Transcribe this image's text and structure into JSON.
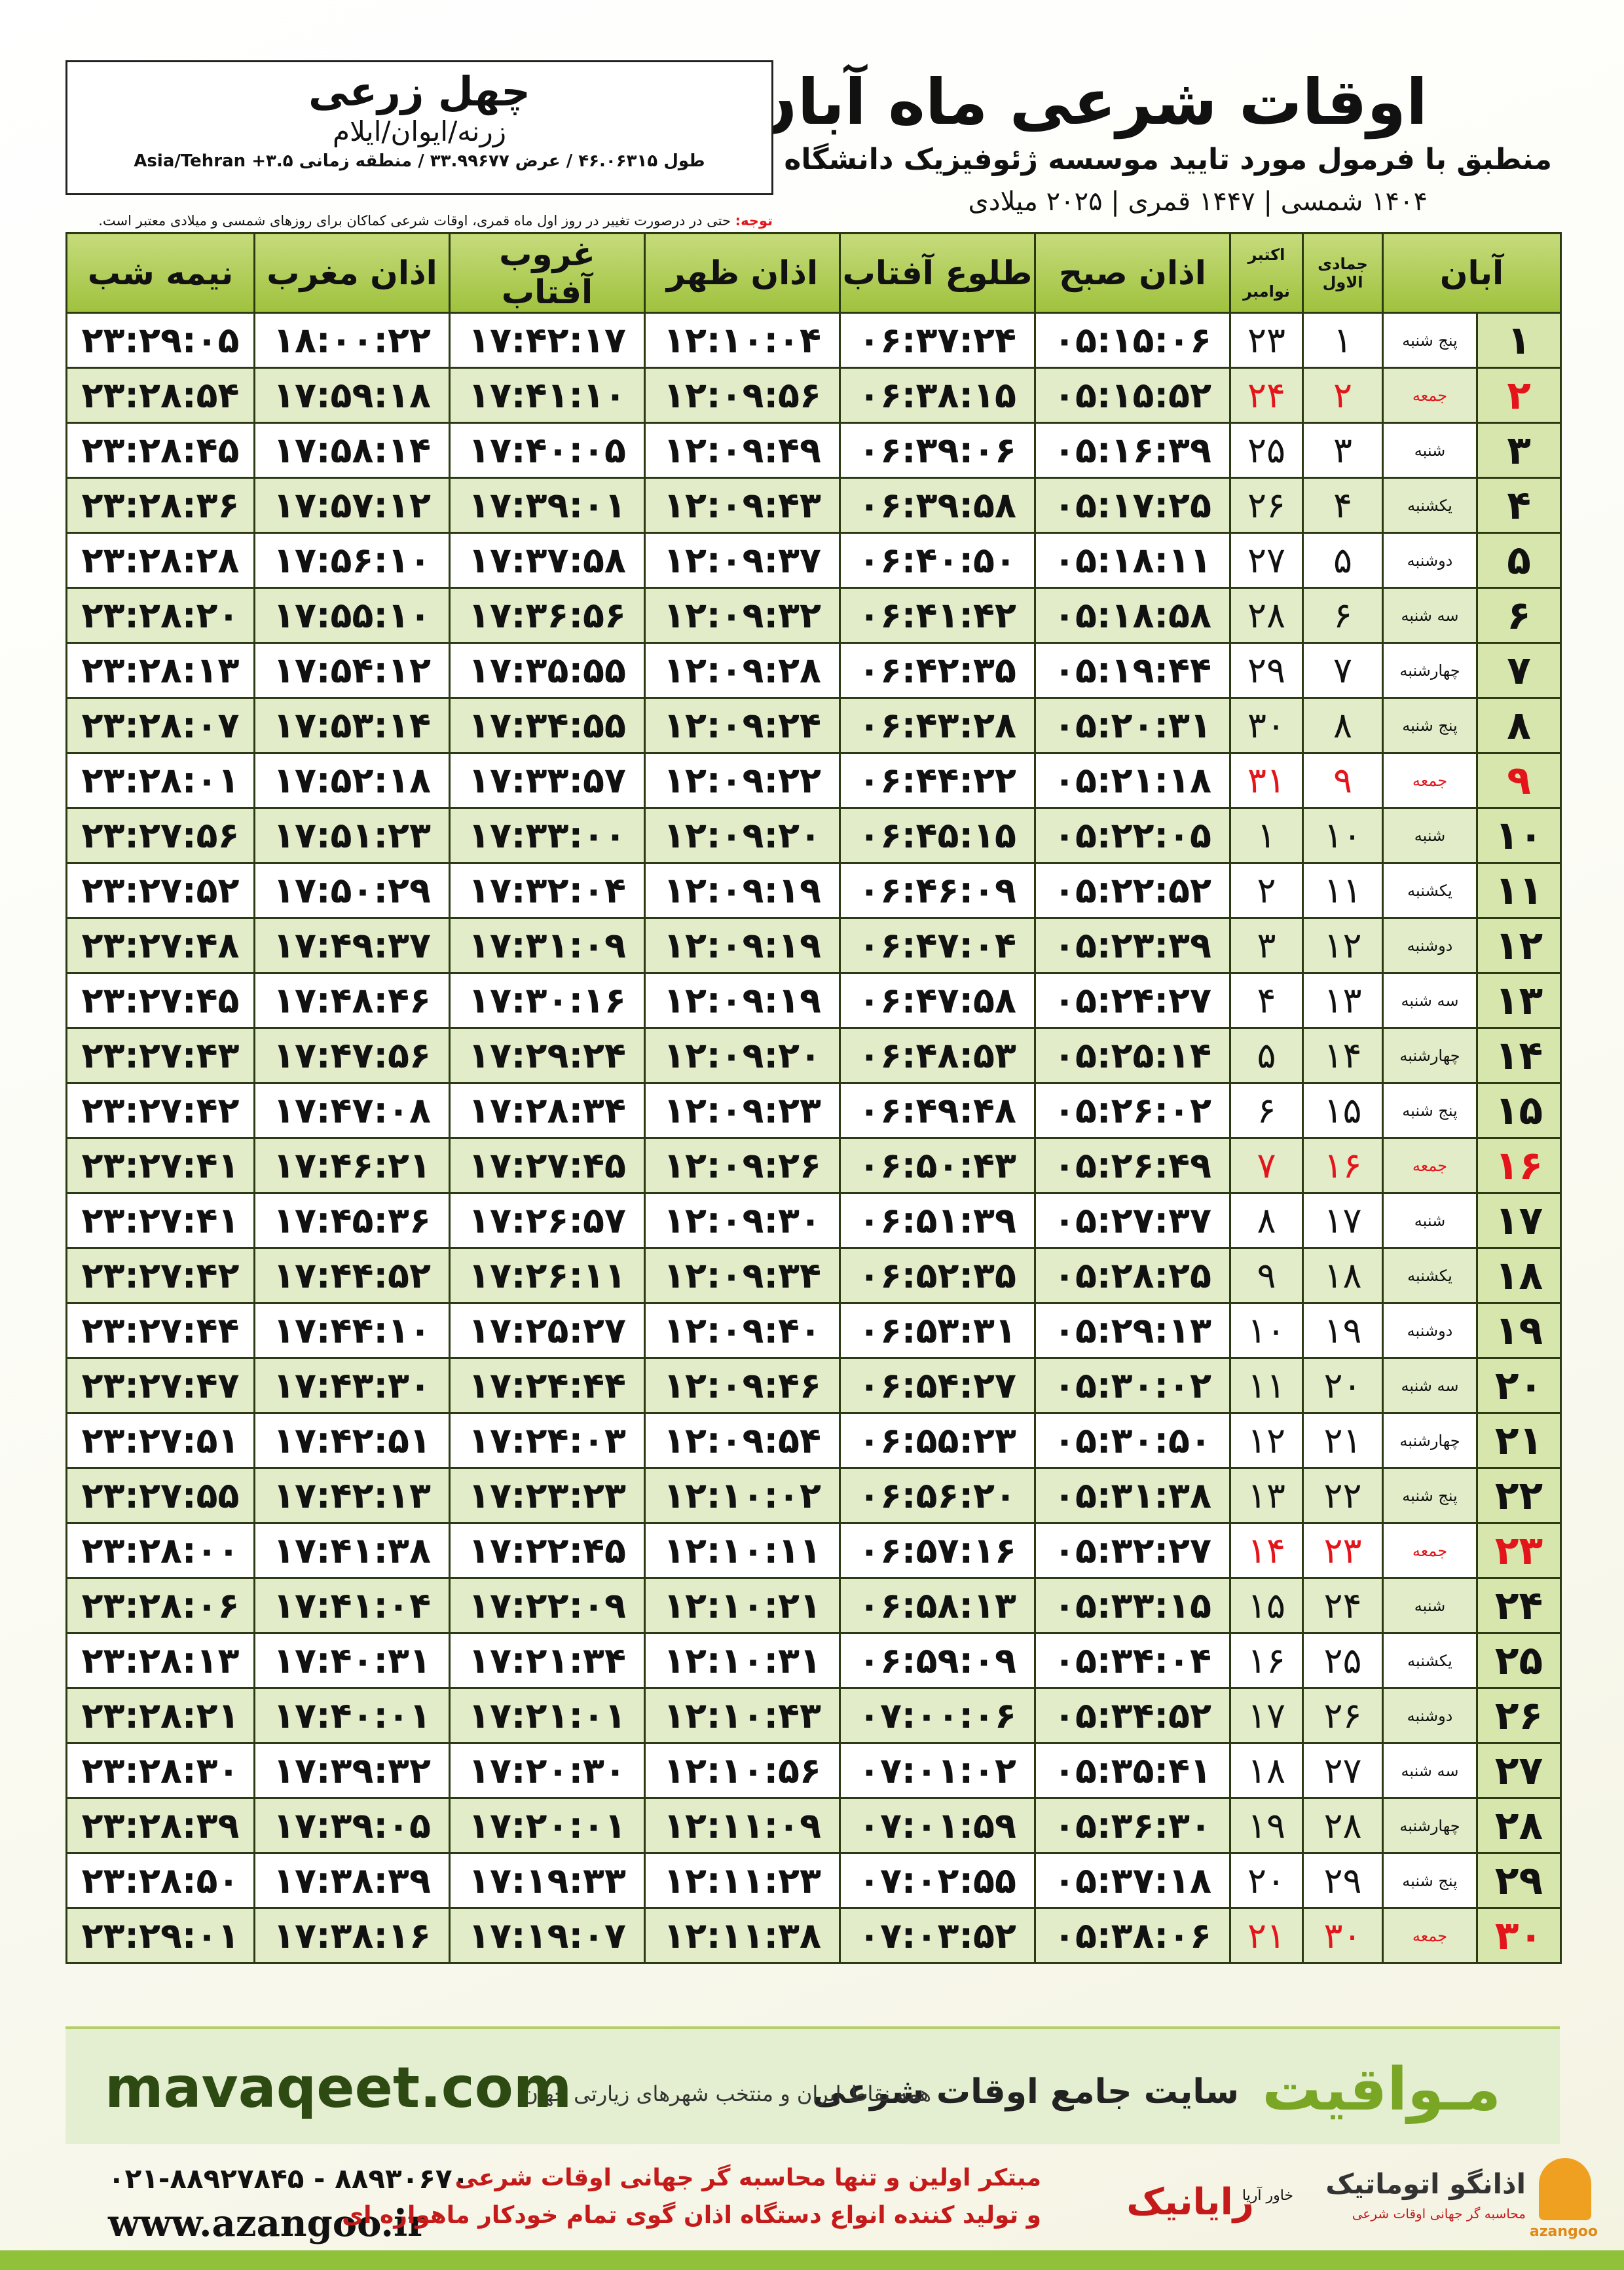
{
  "header": {
    "title": "اوقات شرعی ماه آبان",
    "subtitle": "منطبق با فرمول مورد تایید موسسه ژئوفیزیک دانشگاه تهران",
    "dates": "۱۴۰۴ شمسی | ۱۴۴۷ قمری | ۲۰۲۵ میلادی"
  },
  "location": {
    "name": "چهل زرعی",
    "region": "زرنه/ایوان/ایلام",
    "coords": "طول ۴۶.۰۶۳۱۵ / عرض ۳۳.۹۹۶۷۷ / منطقه زمانی ۳.۵+ Asia/Tehran"
  },
  "note": {
    "label": "توجه:",
    "text": "حتی در درصورت تغییر در روز اول ماه قمری، اوقات شرعی کماکان برای روزهای شمسی و میلادی معتبر است."
  },
  "table": {
    "holiday_color": "#e3151a",
    "headers": {
      "aban": "آبان",
      "qamari": "جمادی الاول",
      "greg_top": "اکتبر",
      "greg_bottom": "نوامبر",
      "fajr": "اذان صبح",
      "sunrise": "طلوع آفتاب",
      "dhuhr": "اذان ظهر",
      "sunset": "غروب آفتاب",
      "maghrib": "اذان مغرب",
      "midnight": "نیمه شب"
    },
    "rows": [
      {
        "cells": [
          "۱",
          "پنج شنبه",
          "۱",
          "۲۳",
          "۰۵:۱۵:۰۶",
          "۰۶:۳۷:۲۴",
          "۱۲:۱۰:۰۴",
          "۱۷:۴۲:۱۷",
          "۱۸:۰۰:۲۲",
          "۲۳:۲۹:۰۵"
        ]
      },
      {
        "cells": [
          "۲",
          "جمعه",
          "۲",
          "۲۴",
          "۰۵:۱۵:۵۲",
          "۰۶:۳۸:۱۵",
          "۱۲:۰۹:۵۶",
          "۱۷:۴۱:۱۰",
          "۱۷:۵۹:۱۸",
          "۲۳:۲۸:۵۴"
        ],
        "holiday": true
      },
      {
        "cells": [
          "۳",
          "شنبه",
          "۳",
          "۲۵",
          "۰۵:۱۶:۳۹",
          "۰۶:۳۹:۰۶",
          "۱۲:۰۹:۴۹",
          "۱۷:۴۰:۰۵",
          "۱۷:۵۸:۱۴",
          "۲۳:۲۸:۴۵"
        ]
      },
      {
        "cells": [
          "۴",
          "یکشنبه",
          "۴",
          "۲۶",
          "۰۵:۱۷:۲۵",
          "۰۶:۳۹:۵۸",
          "۱۲:۰۹:۴۳",
          "۱۷:۳۹:۰۱",
          "۱۷:۵۷:۱۲",
          "۲۳:۲۸:۳۶"
        ]
      },
      {
        "cells": [
          "۵",
          "دوشنبه",
          "۵",
          "۲۷",
          "۰۵:۱۸:۱۱",
          "۰۶:۴۰:۵۰",
          "۱۲:۰۹:۳۷",
          "۱۷:۳۷:۵۸",
          "۱۷:۵۶:۱۰",
          "۲۳:۲۸:۲۸"
        ]
      },
      {
        "cells": [
          "۶",
          "سه شنبه",
          "۶",
          "۲۸",
          "۰۵:۱۸:۵۸",
          "۰۶:۴۱:۴۲",
          "۱۲:۰۹:۳۲",
          "۱۷:۳۶:۵۶",
          "۱۷:۵۵:۱۰",
          "۲۳:۲۸:۲۰"
        ]
      },
      {
        "cells": [
          "۷",
          "چهارشنبه",
          "۷",
          "۲۹",
          "۰۵:۱۹:۴۴",
          "۰۶:۴۲:۳۵",
          "۱۲:۰۹:۲۸",
          "۱۷:۳۵:۵۵",
          "۱۷:۵۴:۱۲",
          "۲۳:۲۸:۱۳"
        ]
      },
      {
        "cells": [
          "۸",
          "پنج شنبه",
          "۸",
          "۳۰",
          "۰۵:۲۰:۳۱",
          "۰۶:۴۳:۲۸",
          "۱۲:۰۹:۲۴",
          "۱۷:۳۴:۵۵",
          "۱۷:۵۳:۱۴",
          "۲۳:۲۸:۰۷"
        ]
      },
      {
        "cells": [
          "۹",
          "جمعه",
          "۹",
          "۳۱",
          "۰۵:۲۱:۱۸",
          "۰۶:۴۴:۲۲",
          "۱۲:۰۹:۲۲",
          "۱۷:۳۳:۵۷",
          "۱۷:۵۲:۱۸",
          "۲۳:۲۸:۰۱"
        ],
        "holiday": true
      },
      {
        "cells": [
          "۱۰",
          "شنبه",
          "۱۰",
          "۱",
          "۰۵:۲۲:۰۵",
          "۰۶:۴۵:۱۵",
          "۱۲:۰۹:۲۰",
          "۱۷:۳۳:۰۰",
          "۱۷:۵۱:۲۳",
          "۲۳:۲۷:۵۶"
        ]
      },
      {
        "cells": [
          "۱۱",
          "یکشنبه",
          "۱۱",
          "۲",
          "۰۵:۲۲:۵۲",
          "۰۶:۴۶:۰۹",
          "۱۲:۰۹:۱۹",
          "۱۷:۳۲:۰۴",
          "۱۷:۵۰:۲۹",
          "۲۳:۲۷:۵۲"
        ]
      },
      {
        "cells": [
          "۱۲",
          "دوشنبه",
          "۱۲",
          "۳",
          "۰۵:۲۳:۳۹",
          "۰۶:۴۷:۰۴",
          "۱۲:۰۹:۱۹",
          "۱۷:۳۱:۰۹",
          "۱۷:۴۹:۳۷",
          "۲۳:۲۷:۴۸"
        ]
      },
      {
        "cells": [
          "۱۳",
          "سه شنبه",
          "۱۳",
          "۴",
          "۰۵:۲۴:۲۷",
          "۰۶:۴۷:۵۸",
          "۱۲:۰۹:۱۹",
          "۱۷:۳۰:۱۶",
          "۱۷:۴۸:۴۶",
          "۲۳:۲۷:۴۵"
        ]
      },
      {
        "cells": [
          "۱۴",
          "چهارشنبه",
          "۱۴",
          "۵",
          "۰۵:۲۵:۱۴",
          "۰۶:۴۸:۵۳",
          "۱۲:۰۹:۲۰",
          "۱۷:۲۹:۲۴",
          "۱۷:۴۷:۵۶",
          "۲۳:۲۷:۴۳"
        ]
      },
      {
        "cells": [
          "۱۵",
          "پنج شنبه",
          "۱۵",
          "۶",
          "۰۵:۲۶:۰۲",
          "۰۶:۴۹:۴۸",
          "۱۲:۰۹:۲۳",
          "۱۷:۲۸:۳۴",
          "۱۷:۴۷:۰۸",
          "۲۳:۲۷:۴۲"
        ]
      },
      {
        "cells": [
          "۱۶",
          "جمعه",
          "۱۶",
          "۷",
          "۰۵:۲۶:۴۹",
          "۰۶:۵۰:۴۳",
          "۱۲:۰۹:۲۶",
          "۱۷:۲۷:۴۵",
          "۱۷:۴۶:۲۱",
          "۲۳:۲۷:۴۱"
        ],
        "holiday": true
      },
      {
        "cells": [
          "۱۷",
          "شنبه",
          "۱۷",
          "۸",
          "۰۵:۲۷:۳۷",
          "۰۶:۵۱:۳۹",
          "۱۲:۰۹:۳۰",
          "۱۷:۲۶:۵۷",
          "۱۷:۴۵:۳۶",
          "۲۳:۲۷:۴۱"
        ]
      },
      {
        "cells": [
          "۱۸",
          "یکشنبه",
          "۱۸",
          "۹",
          "۰۵:۲۸:۲۵",
          "۰۶:۵۲:۳۵",
          "۱۲:۰۹:۳۴",
          "۱۷:۲۶:۱۱",
          "۱۷:۴۴:۵۲",
          "۲۳:۲۷:۴۲"
        ]
      },
      {
        "cells": [
          "۱۹",
          "دوشنبه",
          "۱۹",
          "۱۰",
          "۰۵:۲۹:۱۳",
          "۰۶:۵۳:۳۱",
          "۱۲:۰۹:۴۰",
          "۱۷:۲۵:۲۷",
          "۱۷:۴۴:۱۰",
          "۲۳:۲۷:۴۴"
        ]
      },
      {
        "cells": [
          "۲۰",
          "سه شنبه",
          "۲۰",
          "۱۱",
          "۰۵:۳۰:۰۲",
          "۰۶:۵۴:۲۷",
          "۱۲:۰۹:۴۶",
          "۱۷:۲۴:۴۴",
          "۱۷:۴۳:۳۰",
          "۲۳:۲۷:۴۷"
        ]
      },
      {
        "cells": [
          "۲۱",
          "چهارشنبه",
          "۲۱",
          "۱۲",
          "۰۵:۳۰:۵۰",
          "۰۶:۵۵:۲۳",
          "۱۲:۰۹:۵۴",
          "۱۷:۲۴:۰۳",
          "۱۷:۴۲:۵۱",
          "۲۳:۲۷:۵۱"
        ]
      },
      {
        "cells": [
          "۲۲",
          "پنج شنبه",
          "۲۲",
          "۱۳",
          "۰۵:۳۱:۳۸",
          "۰۶:۵۶:۲۰",
          "۱۲:۱۰:۰۲",
          "۱۷:۲۳:۲۳",
          "۱۷:۴۲:۱۳",
          "۲۳:۲۷:۵۵"
        ]
      },
      {
        "cells": [
          "۲۳",
          "جمعه",
          "۲۳",
          "۱۴",
          "۰۵:۳۲:۲۷",
          "۰۶:۵۷:۱۶",
          "۱۲:۱۰:۱۱",
          "۱۷:۲۲:۴۵",
          "۱۷:۴۱:۳۸",
          "۲۳:۲۸:۰۰"
        ],
        "holiday": true
      },
      {
        "cells": [
          "۲۴",
          "شنبه",
          "۲۴",
          "۱۵",
          "۰۵:۳۳:۱۵",
          "۰۶:۵۸:۱۳",
          "۱۲:۱۰:۲۱",
          "۱۷:۲۲:۰۹",
          "۱۷:۴۱:۰۴",
          "۲۳:۲۸:۰۶"
        ]
      },
      {
        "cells": [
          "۲۵",
          "یکشنبه",
          "۲۵",
          "۱۶",
          "۰۵:۳۴:۰۴",
          "۰۶:۵۹:۰۹",
          "۱۲:۱۰:۳۱",
          "۱۷:۲۱:۳۴",
          "۱۷:۴۰:۳۱",
          "۲۳:۲۸:۱۳"
        ]
      },
      {
        "cells": [
          "۲۶",
          "دوشنبه",
          "۲۶",
          "۱۷",
          "۰۵:۳۴:۵۲",
          "۰۷:۰۰:۰۶",
          "۱۲:۱۰:۴۳",
          "۱۷:۲۱:۰۱",
          "۱۷:۴۰:۰۱",
          "۲۳:۲۸:۲۱"
        ]
      },
      {
        "cells": [
          "۲۷",
          "سه شنبه",
          "۲۷",
          "۱۸",
          "۰۵:۳۵:۴۱",
          "۰۷:۰۱:۰۲",
          "۱۲:۱۰:۵۶",
          "۱۷:۲۰:۳۰",
          "۱۷:۳۹:۳۲",
          "۲۳:۲۸:۳۰"
        ]
      },
      {
        "cells": [
          "۲۸",
          "چهارشنبه",
          "۲۸",
          "۱۹",
          "۰۵:۳۶:۳۰",
          "۰۷:۰۱:۵۹",
          "۱۲:۱۱:۰۹",
          "۱۷:۲۰:۰۱",
          "۱۷:۳۹:۰۵",
          "۲۳:۲۸:۳۹"
        ]
      },
      {
        "cells": [
          "۲۹",
          "پنج شنبه",
          "۲۹",
          "۲۰",
          "۰۵:۳۷:۱۸",
          "۰۷:۰۲:۵۵",
          "۱۲:۱۱:۲۳",
          "۱۷:۱۹:۳۳",
          "۱۷:۳۸:۳۹",
          "۲۳:۲۸:۵۰"
        ]
      },
      {
        "cells": [
          "۳۰",
          "جمعه",
          "۳۰",
          "۲۱",
          "۰۵:۳۸:۰۶",
          "۰۷:۰۳:۵۲",
          "۱۲:۱۱:۳۸",
          "۱۷:۱۹:۰۷",
          "۱۷:۳۸:۱۶",
          "۲۳:۲۹:۰۱"
        ],
        "holiday": true
      }
    ]
  },
  "banner": {
    "brand": "مـواقیت",
    "tagline": "سایت جامع اوقات شرعی",
    "sub": "همه نقاط ایران و منتخب شهرهای زیارتی جهان",
    "url": "mavaqeet.com"
  },
  "footer": {
    "phones": "۰۲۱-۸۸۹۲۷۸۴۵ - ۸۸۹۳۰۶۷۰",
    "web": "www.azangoo.ir",
    "line1": "مبتکر اولین و تنها محاسبه گر جهانی اوقات شرعی",
    "line2": "و تولید کننده انواع دستگاه اذان گوی تمام خودکار ماهواره ای",
    "logo1": "رایانیک",
    "logo1_sub": "خاور آریا",
    "logo2": "اذانگو اتوماتیک",
    "logo2_sub": "محاسبه گر جهانی اوقات شرعی",
    "logo2_en": "azangoo"
  }
}
